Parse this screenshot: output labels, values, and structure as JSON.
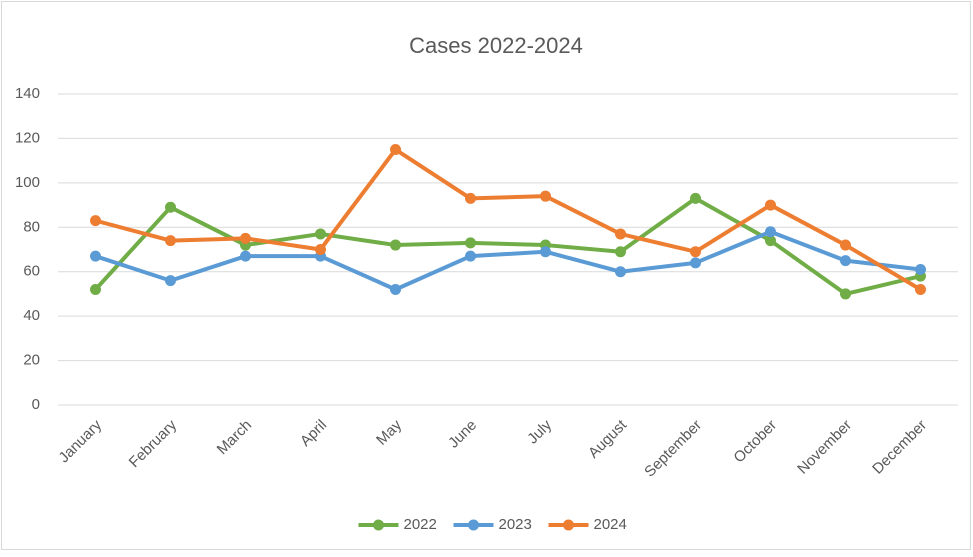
{
  "chart_data": {
    "type": "line",
    "title": "Cases 2022-2024",
    "categories": [
      "January",
      "February",
      "March",
      "April",
      "May",
      "June",
      "July",
      "August",
      "September",
      "October",
      "November",
      "December"
    ],
    "series": [
      {
        "name": "2022",
        "color": "#70ad47",
        "values": [
          52,
          89,
          72,
          77,
          72,
          73,
          72,
          69,
          93,
          74,
          50,
          58
        ]
      },
      {
        "name": "2023",
        "color": "#5b9bd5",
        "values": [
          67,
          56,
          67,
          67,
          52,
          67,
          69,
          60,
          64,
          78,
          65,
          61
        ]
      },
      {
        "name": "2024",
        "color": "#ed7d31",
        "values": [
          83,
          74,
          75,
          70,
          115,
          93,
          94,
          77,
          69,
          90,
          72,
          52
        ]
      }
    ],
    "ylim": [
      0,
      140
    ],
    "yticks": [
      0,
      20,
      40,
      60,
      80,
      100,
      120,
      140
    ],
    "grid": true,
    "legend": "bottom"
  }
}
